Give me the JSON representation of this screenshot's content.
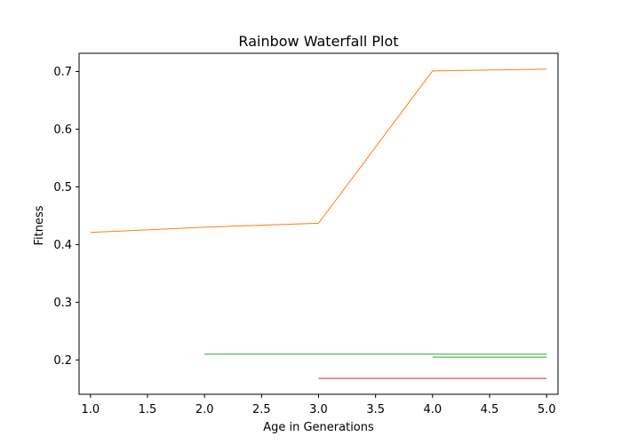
{
  "chart_data": {
    "type": "line",
    "title": "Rainbow Waterfall Plot",
    "xlabel": "Age in Generations",
    "ylabel": "Fitness",
    "xlim": [
      0.9,
      5.1
    ],
    "ylim": [
      0.1405,
      0.7315
    ],
    "xticks": [
      "1.0",
      "1.5",
      "2.0",
      "2.5",
      "3.0",
      "3.5",
      "4.0",
      "4.5",
      "5.0"
    ],
    "yticks": [
      "0.2",
      "0.3",
      "0.4",
      "0.5",
      "0.6",
      "0.7"
    ],
    "grid": false,
    "legend": "none",
    "series": [
      {
        "color": "#ff7f0e",
        "x": [
          1,
          2,
          3,
          4,
          5
        ],
        "y": [
          0.421,
          0.43,
          0.437,
          0.701,
          0.704
        ]
      },
      {
        "color": "#2ca02c",
        "x": [
          2,
          3,
          4,
          5
        ],
        "y": [
          0.21,
          0.21,
          0.21,
          0.21
        ]
      },
      {
        "color": "#2ca02c",
        "x": [
          4,
          5
        ],
        "y": [
          0.205,
          0.205
        ]
      },
      {
        "color": "#d62728",
        "x": [
          3,
          4,
          5
        ],
        "y": [
          0.168,
          0.168,
          0.168
        ]
      }
    ]
  }
}
